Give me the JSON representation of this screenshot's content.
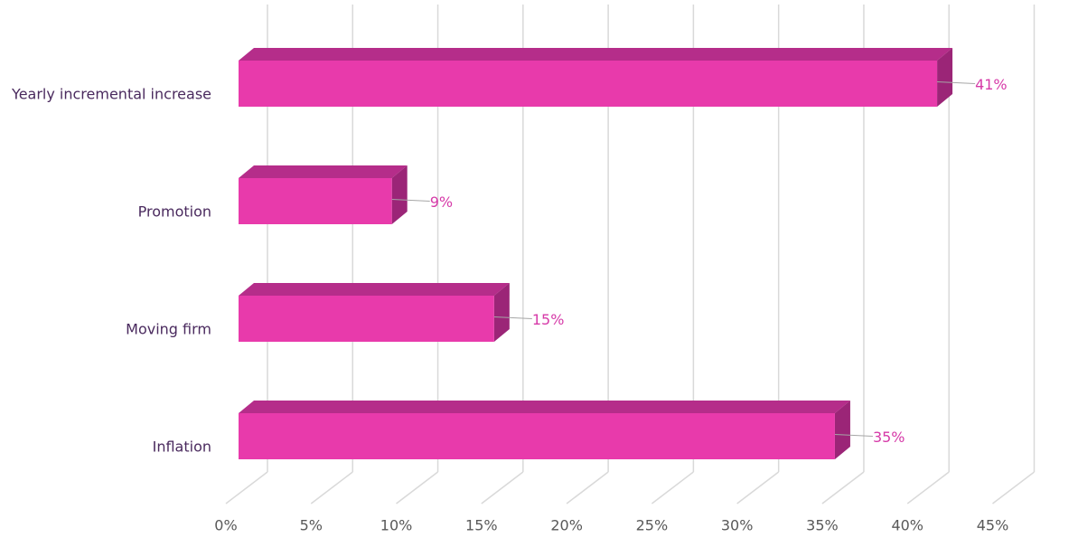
{
  "chart_data": {
    "type": "bar3d-horizontal",
    "categories": [
      "Yearly incremental increase",
      "Promotion",
      "Moving firm",
      "Inflation"
    ],
    "values": [
      41,
      9,
      15,
      35
    ],
    "value_labels": [
      "41%",
      "9%",
      "15%",
      "35%"
    ],
    "color": "#e83aab",
    "xlim": [
      0,
      45
    ],
    "xticks": [
      {
        "value": 0,
        "label": "0%"
      },
      {
        "value": 5,
        "label": "5%"
      },
      {
        "value": 10,
        "label": "10%"
      },
      {
        "value": 15,
        "label": "15%"
      },
      {
        "value": 20,
        "label": "20%"
      },
      {
        "value": 25,
        "label": "25%"
      },
      {
        "value": 30,
        "label": "30%"
      },
      {
        "value": 35,
        "label": "35%"
      },
      {
        "value": 40,
        "label": "40%"
      },
      {
        "value": 45,
        "label": "45%"
      }
    ],
    "grid": true
  }
}
